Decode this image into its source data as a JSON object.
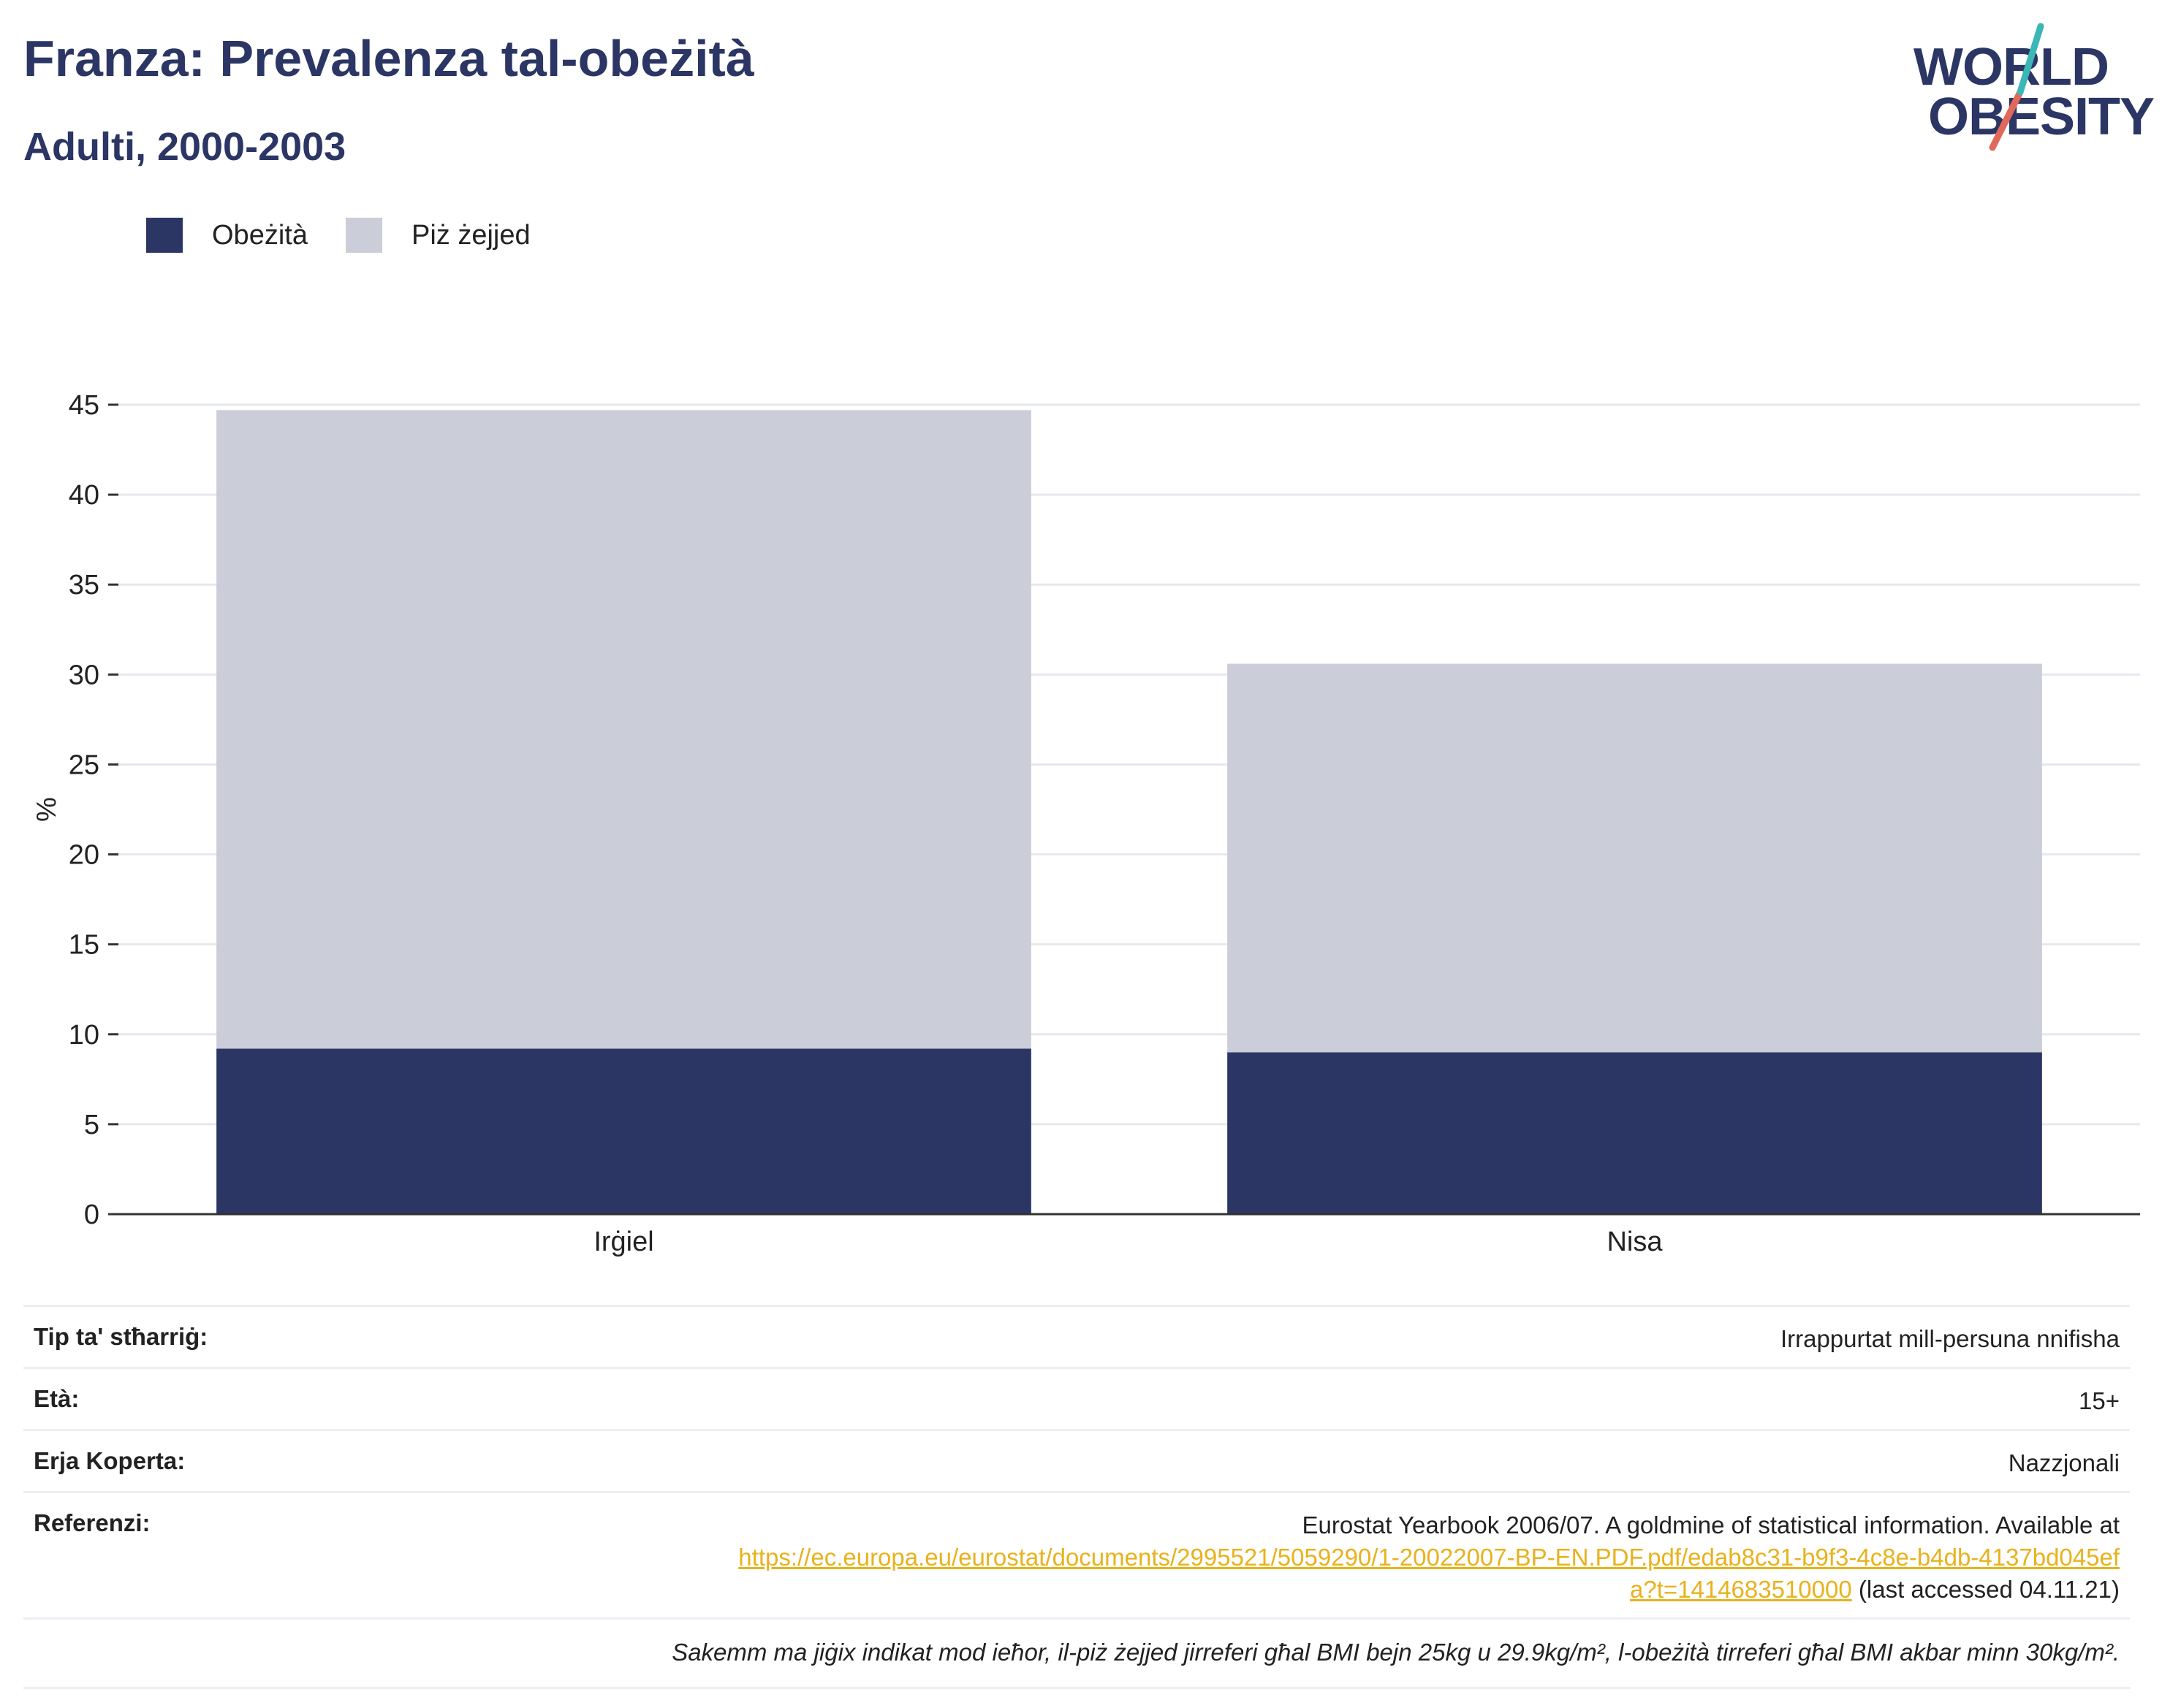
{
  "title": "Franza: Prevalenza tal-obeżità",
  "subtitle": "Adulti, 2000-2003",
  "logo": {
    "line1": "WORLD",
    "line2": "OBESITY"
  },
  "legend": [
    {
      "label": "Obeżità",
      "color": "#2b3664"
    },
    {
      "label": "Piż żejjed",
      "color": "#cbcdd8"
    }
  ],
  "chart_data": {
    "type": "bar",
    "stacked": true,
    "categories": [
      "Irġiel",
      "Nisa"
    ],
    "series": [
      {
        "name": "Obeżità",
        "color": "#2b3664",
        "values": [
          9.2,
          9.0
        ]
      },
      {
        "name": "Piż żejjed",
        "color": "#cbcdd8",
        "values": [
          35.5,
          21.6
        ]
      }
    ],
    "ylabel": "%",
    "ylim": [
      0,
      45
    ],
    "yticks": [
      0,
      5,
      10,
      15,
      20,
      25,
      30,
      35,
      40,
      45
    ],
    "grid": true,
    "legend_position": "top-left"
  },
  "info": {
    "survey_type_label": "Tip ta' stħarriġ:",
    "survey_type_value": "Irrappurtat mill-persuna nnifisha",
    "age_label": "Età:",
    "age_value": "15+",
    "area_label": "Erja Koperta:",
    "area_value": "Nazzjonali",
    "reference_label": "Referenzi:",
    "reference_text": "Eurostat Yearbook 2006/07. A goldmine of statistical information. Available at",
    "reference_link": "https://ec.europa.eu/eurostat/documents/2995521/5059290/1-20022007-BP-EN.PDF.pdf/edab8c31-b9f3-4c8e-b4db-4137bd045efa?t=1414683510000",
    "reference_suffix": "(last accessed 04.11.21)",
    "note": "Sakemm ma jiġix indikat mod ieħor, il-piż żejjed jirreferi għal BMI bejn 25kg u 29.9kg/m², l-obeżità tirreferi għal BMI akbar minn 30kg/m²."
  }
}
